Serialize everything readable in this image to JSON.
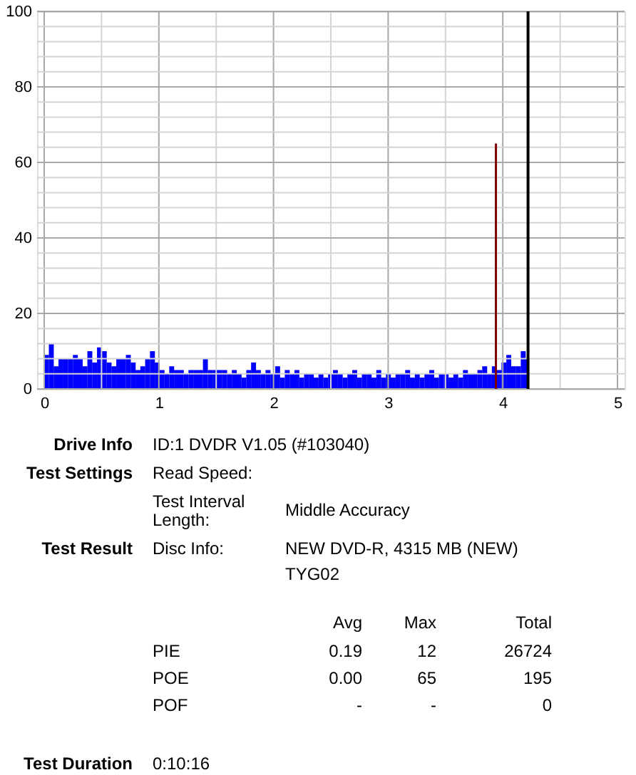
{
  "chart_data": {
    "type": "bar",
    "x": [
      0.02,
      0.062,
      0.104,
      0.146,
      0.188,
      0.23,
      0.272,
      0.314,
      0.356,
      0.398,
      0.44,
      0.482,
      0.524,
      0.566,
      0.608,
      0.65,
      0.692,
      0.734,
      0.776,
      0.818,
      0.86,
      0.902,
      0.944,
      0.986,
      1.028,
      1.07,
      1.112,
      1.154,
      1.196,
      1.238,
      1.28,
      1.322,
      1.364,
      1.406,
      1.448,
      1.49,
      1.532,
      1.574,
      1.616,
      1.658,
      1.7,
      1.742,
      1.784,
      1.826,
      1.868,
      1.91,
      1.952,
      1.994,
      2.036,
      2.078,
      2.12,
      2.162,
      2.204,
      2.246,
      2.288,
      2.33,
      2.372,
      2.414,
      2.456,
      2.498,
      2.54,
      2.582,
      2.624,
      2.666,
      2.708,
      2.75,
      2.792,
      2.834,
      2.876,
      2.918,
      2.96,
      3.002,
      3.044,
      3.086,
      3.128,
      3.17,
      3.212,
      3.254,
      3.296,
      3.338,
      3.38,
      3.422,
      3.464,
      3.506,
      3.548,
      3.59,
      3.632,
      3.674,
      3.716,
      3.758,
      3.8,
      3.842,
      3.884,
      3.926,
      3.968,
      4.01,
      4.052,
      4.094,
      4.136,
      4.178,
      4.2
    ],
    "series": [
      {
        "color": "#0000ff",
        "values": [
          9,
          12,
          6,
          8,
          8,
          8,
          9,
          8,
          6,
          10,
          7,
          11,
          10,
          7,
          6,
          8,
          8,
          9,
          7,
          5,
          6,
          8,
          10,
          7,
          5,
          4,
          6,
          5,
          5,
          4,
          5,
          5,
          5,
          8,
          5,
          5,
          5,
          5,
          4,
          5,
          4,
          3,
          5,
          7,
          5,
          4,
          5,
          4,
          6,
          3,
          5,
          4,
          5,
          3,
          4,
          4,
          3,
          4,
          3,
          4,
          5,
          4,
          3,
          4,
          5,
          3,
          4,
          4,
          3,
          5,
          3,
          4,
          3,
          4,
          4,
          5,
          3,
          4,
          3,
          4,
          5,
          3,
          4,
          4,
          3,
          4,
          3,
          5,
          4,
          4,
          5,
          6,
          4,
          6,
          5,
          7,
          9,
          6,
          6,
          10,
          8
        ]
      },
      {
        "type": "bar",
        "color": "#800000",
        "x": [
          3.94
        ],
        "values": [
          65
        ]
      }
    ],
    "xlim": [
      0,
      5
    ],
    "xticks": [
      0,
      {
        "value": 0.5,
        "label": null
      },
      1,
      {
        "value": 1.5,
        "label": null
      },
      2,
      {
        "value": 2.5,
        "label": null
      },
      3,
      {
        "value": 3.5,
        "label": null
      },
      4,
      {
        "value": 4.5,
        "label": null
      },
      5
    ],
    "ylim": [
      0,
      100
    ],
    "yticks": [
      0,
      {
        "value": 4,
        "label": null
      },
      {
        "value": 8,
        "label": null
      },
      {
        "value": 12,
        "label": null
      },
      {
        "value": 16,
        "label": null
      },
      20,
      {
        "value": 24,
        "label": null
      },
      {
        "value": 28,
        "label": null
      },
      {
        "value": 32,
        "label": null
      },
      {
        "value": 36,
        "label": null
      },
      40,
      {
        "value": 44,
        "label": null
      },
      {
        "value": 48,
        "label": null
      },
      {
        "value": 52,
        "label": null
      },
      {
        "value": 56,
        "label": null
      },
      60,
      {
        "value": 64,
        "label": null
      },
      {
        "value": 68,
        "label": null
      },
      {
        "value": 72,
        "label": null
      },
      {
        "value": 76,
        "label": null
      },
      80,
      {
        "value": 84,
        "label": null
      },
      {
        "value": 88,
        "label": null
      },
      {
        "value": 92,
        "label": null
      },
      {
        "value": 96,
        "label": null
      },
      100
    ],
    "grid": true,
    "ref_lines": [
      {
        "axis": "x",
        "value": 4.22,
        "color": "#000000"
      }
    ],
    "annotations": [
      "Drive Info",
      "ID:1 DVDR V1.05 (#103040)",
      "Test Settings",
      "Read Speed:",
      "Test Interval Length:",
      "Middle Accuracy",
      "Test Result",
      "Disc Info:",
      "NEW DVD-R, 4315 MB (NEW)",
      "TYG02",
      "Avg",
      "Max",
      "Total",
      "PIE",
      "0.19",
      "12",
      "26724",
      "POE",
      "0.00",
      "65",
      "195",
      "POF",
      "-",
      "-",
      "0",
      "Test Duration",
      "0:10:16"
    ]
  }
}
